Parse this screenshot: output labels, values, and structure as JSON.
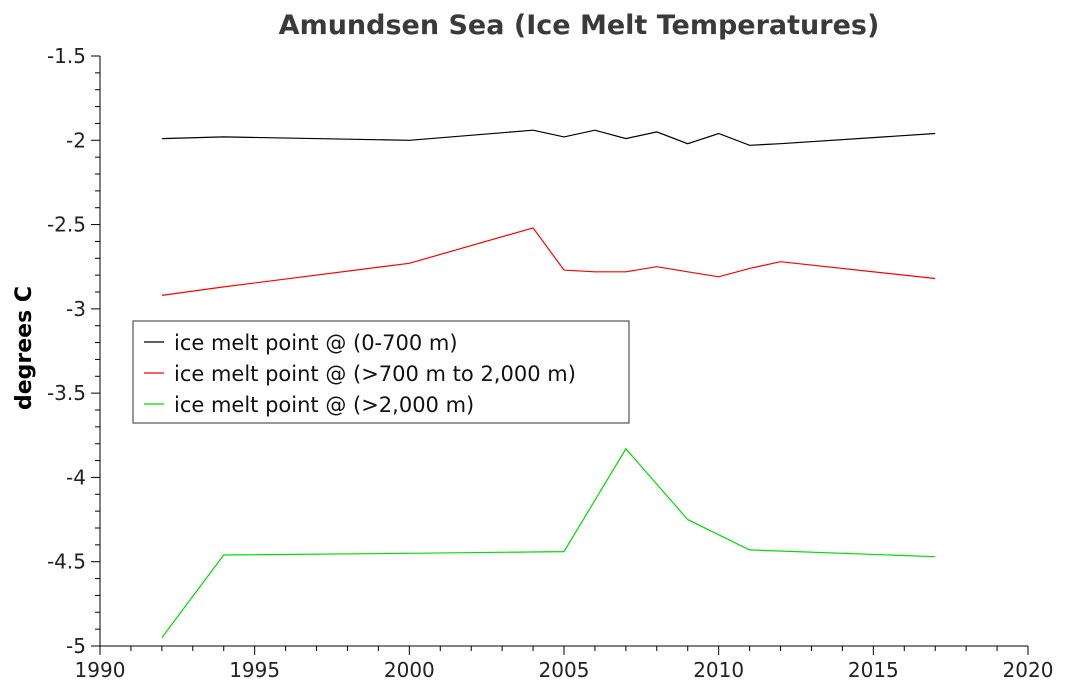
{
  "chart_data": {
    "type": "line",
    "title": "Amundsen Sea (Ice Melt Temperatures)",
    "xlabel": "",
    "ylabel": "degrees C",
    "xlim": [
      1990,
      2020
    ],
    "ylim": [
      -5,
      -1.5
    ],
    "x_ticks": [
      1990,
      1995,
      2000,
      2005,
      2010,
      2015,
      2020
    ],
    "y_ticks": [
      -1.5,
      -2,
      -2.5,
      -3,
      -3.5,
      -4,
      -4.5,
      -5
    ],
    "grid": false,
    "legend_position": "middle-left",
    "series": [
      {
        "name": "ice melt point @ (0-700 m)",
        "color": "#000000",
        "points": [
          [
            1992,
            -1.99
          ],
          [
            1994,
            -1.98
          ],
          [
            2000,
            -2.0
          ],
          [
            2004,
            -1.94
          ],
          [
            2005,
            -1.98
          ],
          [
            2006,
            -1.94
          ],
          [
            2007,
            -1.99
          ],
          [
            2008,
            -1.95
          ],
          [
            2009,
            -2.02
          ],
          [
            2010,
            -1.96
          ],
          [
            2011,
            -2.03
          ],
          [
            2012,
            -2.02
          ],
          [
            2017,
            -1.96
          ]
        ]
      },
      {
        "name": "ice melt point @ (>700 m to 2,000 m)",
        "color": "#ff0000",
        "points": [
          [
            1992,
            -2.92
          ],
          [
            1994,
            -2.87
          ],
          [
            2000,
            -2.73
          ],
          [
            2004,
            -2.52
          ],
          [
            2005,
            -2.77
          ],
          [
            2006,
            -2.78
          ],
          [
            2007,
            -2.78
          ],
          [
            2008,
            -2.75
          ],
          [
            2009,
            -2.78
          ],
          [
            2010,
            -2.81
          ],
          [
            2011,
            -2.76
          ],
          [
            2012,
            -2.72
          ],
          [
            2017,
            -2.82
          ]
        ]
      },
      {
        "name": "ice melt point @ (>2,000 m)",
        "color": "#00dd00",
        "points": [
          [
            1992,
            -4.95
          ],
          [
            1994,
            -4.46
          ],
          [
            2000,
            -4.45
          ],
          [
            2005,
            -4.44
          ],
          [
            2007,
            -3.83
          ],
          [
            2009,
            -4.25
          ],
          [
            2011,
            -4.43
          ],
          [
            2017,
            -4.47
          ]
        ]
      }
    ]
  }
}
